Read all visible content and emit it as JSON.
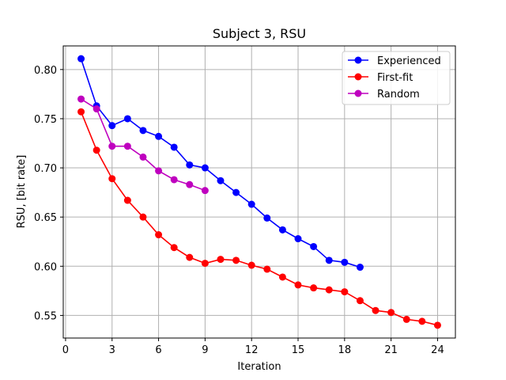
{
  "chart_data": {
    "type": "line",
    "title": "Subject 3, RSU",
    "xlabel": "Iteration",
    "ylabel": "RSU, [bit rate]",
    "xlim": [
      -0.15,
      25.15
    ],
    "ylim": [
      0.527,
      0.824
    ],
    "xticks": [
      0,
      3,
      6,
      9,
      12,
      15,
      18,
      21,
      24
    ],
    "yticks": [
      0.55,
      0.6,
      0.65,
      0.7,
      0.75,
      0.8
    ],
    "ytick_labels": [
      "0.55",
      "0.60",
      "0.65",
      "0.70",
      "0.75",
      "0.80"
    ],
    "grid": true,
    "legend_position": "top-right",
    "series": [
      {
        "name": "Experienced",
        "color": "#0000ff",
        "x": [
          1,
          2,
          3,
          4,
          5,
          6,
          7,
          8,
          9,
          10,
          11,
          12,
          13,
          14,
          15,
          16,
          17,
          18,
          19
        ],
        "y": [
          0.811,
          0.763,
          0.743,
          0.75,
          0.738,
          0.732,
          0.721,
          0.703,
          0.7,
          0.687,
          0.675,
          0.663,
          0.649,
          0.637,
          0.628,
          0.62,
          0.606,
          0.604,
          0.599
        ]
      },
      {
        "name": "First-fit",
        "color": "#ff0000",
        "x": [
          1,
          2,
          3,
          4,
          5,
          6,
          7,
          8,
          9,
          10,
          11,
          12,
          13,
          14,
          15,
          16,
          17,
          18,
          19,
          20,
          21,
          22,
          23,
          24
        ],
        "y": [
          0.757,
          0.718,
          0.689,
          0.667,
          0.65,
          0.632,
          0.619,
          0.609,
          0.603,
          0.607,
          0.606,
          0.601,
          0.597,
          0.589,
          0.581,
          0.578,
          0.576,
          0.574,
          0.565,
          0.555,
          0.553,
          0.546,
          0.544,
          0.54
        ]
      },
      {
        "name": "Random",
        "color": "#bf00bf",
        "x": [
          1,
          2,
          3,
          4,
          5,
          6,
          7,
          8,
          9
        ],
        "y": [
          0.77,
          0.76,
          0.722,
          0.722,
          0.711,
          0.697,
          0.688,
          0.683,
          0.677
        ]
      }
    ]
  }
}
